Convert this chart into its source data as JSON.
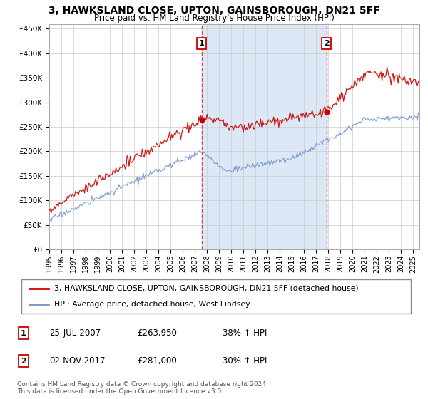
{
  "title": "3, HAWKSLAND CLOSE, UPTON, GAINSBOROUGH, DN21 5FF",
  "subtitle": "Price paid vs. HM Land Registry's House Price Index (HPI)",
  "ylabel_ticks": [
    "£0",
    "£50K",
    "£100K",
    "£150K",
    "£200K",
    "£250K",
    "£300K",
    "£350K",
    "£400K",
    "£450K"
  ],
  "ytick_values": [
    0,
    50000,
    100000,
    150000,
    200000,
    250000,
    300000,
    350000,
    400000,
    450000
  ],
  "ylim": [
    0,
    460000
  ],
  "xlim_start": 1995.0,
  "xlim_end": 2025.5,
  "xtick_years": [
    1995,
    1996,
    1997,
    1998,
    1999,
    2000,
    2001,
    2002,
    2003,
    2004,
    2005,
    2006,
    2007,
    2008,
    2009,
    2010,
    2011,
    2012,
    2013,
    2014,
    2015,
    2016,
    2017,
    2018,
    2019,
    2020,
    2021,
    2022,
    2023,
    2024,
    2025
  ],
  "sale1_x": 2007.56,
  "sale1_y": 263950,
  "sale1_label": "1",
  "sale1_date": "25-JUL-2007",
  "sale1_price": "£263,950",
  "sale1_pct": "38% ↑ HPI",
  "sale2_x": 2017.84,
  "sale2_y": 281000,
  "sale2_label": "2",
  "sale2_date": "02-NOV-2017",
  "sale2_price": "£281,000",
  "sale2_pct": "30% ↑ HPI",
  "line1_color": "#cc0000",
  "line2_color": "#7799cc",
  "shade_color": "#dce8f5",
  "line1_label": "3, HAWKSLAND CLOSE, UPTON, GAINSBOROUGH, DN21 5FF (detached house)",
  "line2_label": "HPI: Average price, detached house, West Lindsey",
  "footnote": "Contains HM Land Registry data © Crown copyright and database right 2024.\nThis data is licensed under the Open Government Licence v3.0.",
  "background_color": "#ffffff",
  "plot_bg_color": "#ffffff",
  "grid_color": "#cccccc"
}
